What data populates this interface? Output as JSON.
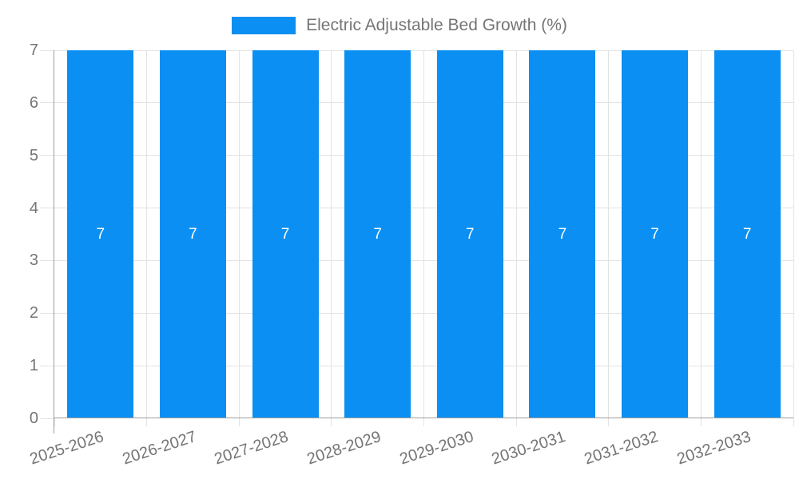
{
  "legend": {
    "label": "Electric Adjustable Bed Growth (%)"
  },
  "chart_data": {
    "type": "bar",
    "title": "Electric Adjustable Bed Growth (%)",
    "categories": [
      "2025-2026",
      "2026-2027",
      "2027-2028",
      "2028-2029",
      "2029-2030",
      "2030-2031",
      "2031-2032",
      "2032-2033"
    ],
    "series": [
      {
        "name": "Electric Adjustable Bed Growth (%)",
        "values": [
          7,
          7,
          7,
          7,
          7,
          7,
          7,
          7
        ]
      }
    ],
    "bar_labels": [
      "7",
      "7",
      "7",
      "7",
      "7",
      "7",
      "7",
      "7"
    ],
    "xlabel": "",
    "ylabel": "",
    "ylim": [
      0,
      7
    ],
    "yticks": [
      0,
      1,
      2,
      3,
      4,
      5,
      6,
      7
    ],
    "grid": true,
    "legend_position": "top",
    "colors": {
      "bar": "#0b8ff2",
      "bar_label": "#ffffff",
      "axis_text": "#757575",
      "grid_line": "#e3e3e3",
      "axis_line": "#9e9e9e",
      "background": "#ffffff"
    }
  }
}
